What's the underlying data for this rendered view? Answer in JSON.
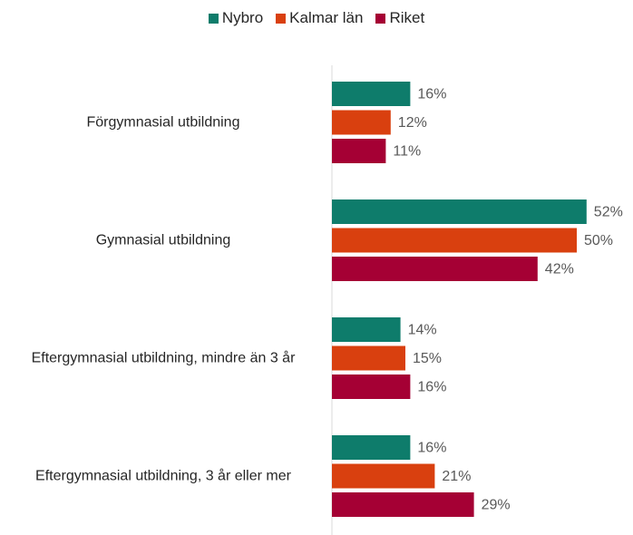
{
  "chart_data": {
    "type": "bar",
    "orientation": "horizontal",
    "categories": [
      "Förgymnasial utbildning",
      "Gymnasial utbildning",
      "Eftergymnasial utbildning, mindre än 3 år",
      "Eftergymnasial utbildning, 3 år eller mer"
    ],
    "series": [
      {
        "name": "Nybro",
        "color": "#0e7c6b",
        "values": [
          16,
          52,
          14,
          16
        ],
        "value_labels": [
          "16%",
          "52%",
          "14%",
          "16%"
        ]
      },
      {
        "name": "Kalmar län",
        "color": "#d9400f",
        "values": [
          12,
          50,
          15,
          21
        ],
        "value_labels": [
          "12%",
          "50%",
          "15%",
          "21%"
        ]
      },
      {
        "name": "Riket",
        "color": "#a50034",
        "values": [
          11,
          42,
          16,
          29
        ],
        "value_labels": [
          "11%",
          "42%",
          "16%",
          "29%"
        ]
      }
    ],
    "legend": "top"
  }
}
